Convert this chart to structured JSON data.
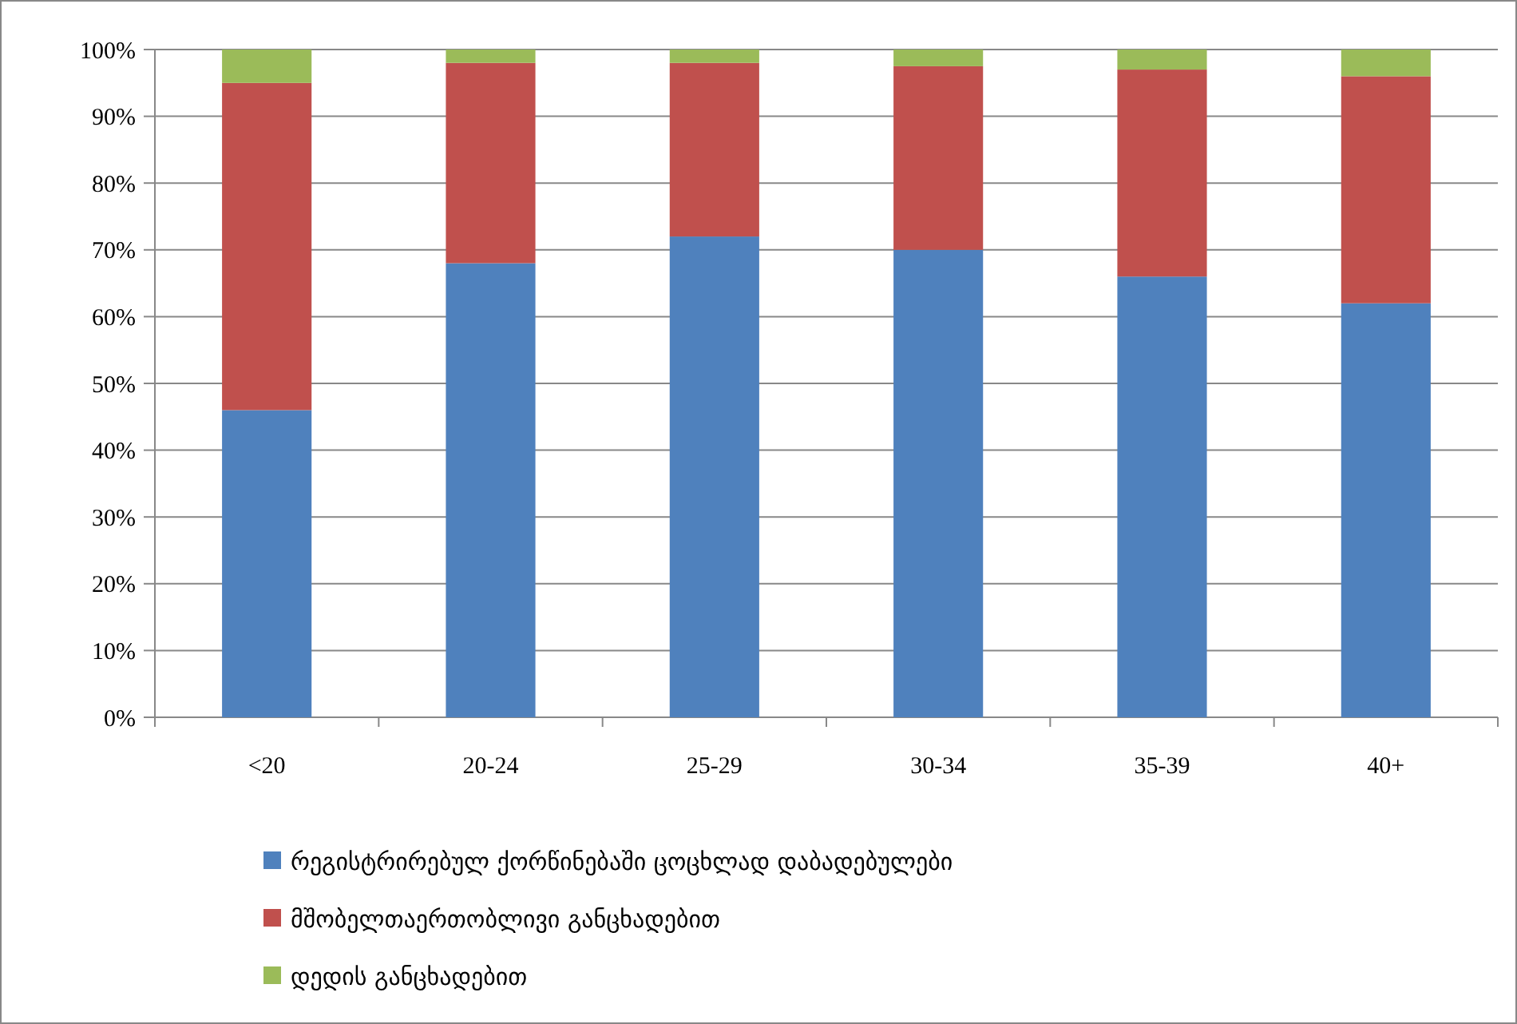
{
  "chart_data": {
    "type": "bar",
    "stacked": true,
    "categories": [
      "<20",
      "20-24",
      "25-29",
      "30-34",
      "35-39",
      "40+"
    ],
    "series": [
      {
        "name": "რეგისტრირებულ ქორწინებაში ცოცხლად დაბადებულები",
        "color": "#4f81bd",
        "values": [
          46,
          68,
          72,
          70,
          66,
          62
        ]
      },
      {
        "name": "მშობელთაერთობლივი განცხადებით",
        "color": "#c0504d",
        "values": [
          49,
          30,
          26,
          27.5,
          31,
          34
        ]
      },
      {
        "name": "დედის განცხადებით",
        "color": "#9bbb59",
        "values": [
          5,
          2,
          2,
          2.5,
          3,
          4
        ]
      }
    ],
    "ylim": [
      0,
      100
    ],
    "yticks": [
      {
        "value": 0,
        "label": "0%"
      },
      {
        "value": 10,
        "label": "10%"
      },
      {
        "value": 20,
        "label": "20%"
      },
      {
        "value": 30,
        "label": "30%"
      },
      {
        "value": 40,
        "label": "40%"
      },
      {
        "value": 50,
        "label": "50%"
      },
      {
        "value": 60,
        "label": "60%"
      },
      {
        "value": 70,
        "label": "70%"
      },
      {
        "value": 80,
        "label": "80%"
      },
      {
        "value": 90,
        "label": "90%"
      },
      {
        "value": 100,
        "label": "100%"
      }
    ],
    "grid": "y",
    "legend": "bottom"
  }
}
